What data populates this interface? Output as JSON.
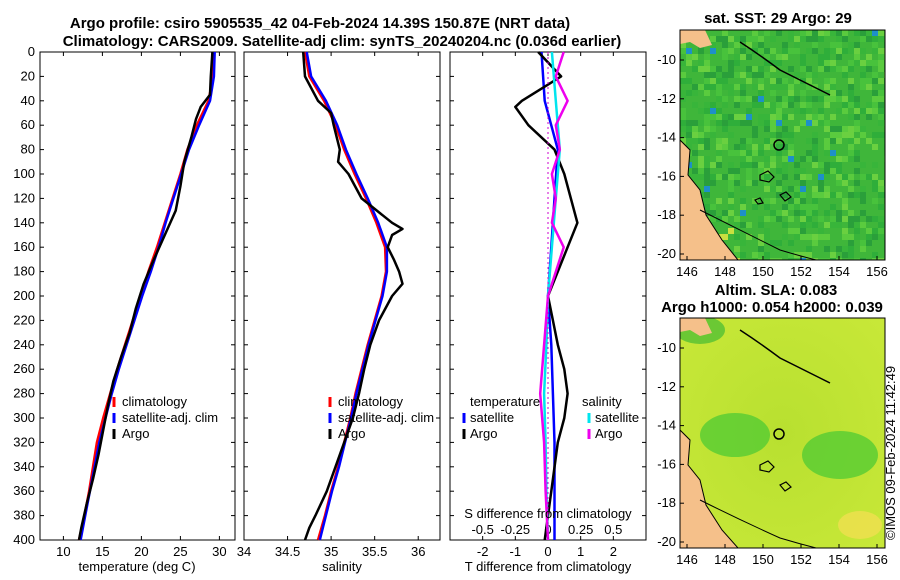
{
  "header": {
    "title_line1": "Argo profile: csiro 5905535_42 04-Feb-2024 14.39S 150.87E (NRT data)",
    "title_line2": "Climatology: CARS2009. Satellite-adj clim: synTS_20240204.nc (0.036d earlier)"
  },
  "colors": {
    "climatology": "#ff0000",
    "satellite": "#0000ff",
    "argo": "#000000",
    "satellite_diff": "#00e5ee",
    "argo_diff_s": "#ee00ee",
    "land": "#f5c08a",
    "sea": "#33bb33"
  },
  "chart_data": [
    {
      "type": "line",
      "name": "temperature-profile",
      "xlabel": "temperature (deg C)",
      "ylabel": "depth",
      "xlim": [
        7,
        32
      ],
      "ylim": [
        400,
        0
      ],
      "xticks": [
        10,
        15,
        20,
        25,
        30
      ],
      "yticks": [
        0,
        20,
        40,
        60,
        80,
        100,
        120,
        140,
        160,
        180,
        200,
        220,
        240,
        260,
        280,
        300,
        320,
        340,
        360,
        380,
        400
      ],
      "legend": [
        "climatology",
        "satellite-adj. clim",
        "Argo"
      ],
      "series": [
        {
          "name": "climatology",
          "color": "#ff0000",
          "depth": [
            0,
            20,
            40,
            60,
            80,
            100,
            120,
            140,
            160,
            180,
            200,
            220,
            240,
            260,
            280,
            300,
            320,
            340,
            360,
            380,
            400
          ],
          "values": [
            29.3,
            29.2,
            28.6,
            27.1,
            25.9,
            25.0,
            24.0,
            23.0,
            22.0,
            20.9,
            19.9,
            18.9,
            17.9,
            16.9,
            16.0,
            15.1,
            14.3,
            13.8,
            13.3,
            12.7,
            12.0
          ]
        },
        {
          "name": "satellite-adj. clim",
          "color": "#0000ff",
          "depth": [
            0,
            20,
            40,
            60,
            80,
            100,
            120,
            140,
            160,
            180,
            200,
            220,
            240,
            260,
            280,
            300,
            320,
            340,
            360,
            380,
            400
          ],
          "values": [
            29.4,
            29.3,
            28.8,
            27.4,
            26.1,
            25.1,
            24.1,
            23.1,
            22.2,
            21.2,
            20.1,
            19.1,
            18.1,
            17.1,
            16.2,
            15.4,
            14.6,
            14.0,
            13.4,
            12.8,
            12.2
          ]
        },
        {
          "name": "Argo",
          "color": "#000000",
          "depth": [
            0,
            20,
            35,
            45,
            55,
            70,
            90,
            110,
            130,
            150,
            170,
            190,
            210,
            230,
            250,
            270,
            290,
            310,
            330,
            350,
            370,
            390,
            400
          ],
          "values": [
            29.1,
            28.9,
            28.8,
            27.6,
            27.0,
            26.4,
            25.5,
            25.0,
            24.4,
            23.0,
            21.6,
            20.3,
            19.3,
            18.5,
            17.4,
            16.4,
            15.7,
            15.1,
            14.5,
            13.8,
            13.0,
            12.3,
            12.0
          ]
        }
      ]
    },
    {
      "type": "line",
      "name": "salinity-profile",
      "xlabel": "salinity",
      "ylabel": "depth",
      "xlim": [
        34,
        36.25
      ],
      "ylim": [
        400,
        0
      ],
      "xticks": [
        34,
        34.5,
        35,
        35.5,
        36
      ],
      "legend": [
        "climatology",
        "satellite-adj. clim",
        "Argo"
      ],
      "series": [
        {
          "name": "climatology",
          "color": "#ff0000",
          "depth": [
            0,
            20,
            40,
            60,
            80,
            100,
            120,
            140,
            160,
            180,
            200,
            220,
            240,
            260,
            280,
            300,
            320,
            340,
            360,
            380,
            400
          ],
          "values": [
            34.7,
            34.75,
            34.92,
            35.05,
            35.15,
            35.27,
            35.4,
            35.52,
            35.62,
            35.63,
            35.58,
            35.5,
            35.42,
            35.35,
            35.28,
            35.22,
            35.15,
            35.08,
            35.0,
            34.93,
            34.85
          ]
        },
        {
          "name": "satellite-adj. clim",
          "color": "#0000ff",
          "depth": [
            0,
            20,
            40,
            60,
            80,
            100,
            120,
            140,
            160,
            180,
            200,
            220,
            240,
            260,
            280,
            300,
            320,
            340,
            360,
            380,
            400
          ],
          "values": [
            34.72,
            34.77,
            34.94,
            35.07,
            35.17,
            35.29,
            35.42,
            35.54,
            35.64,
            35.64,
            35.59,
            35.51,
            35.43,
            35.36,
            35.29,
            35.23,
            35.16,
            35.09,
            35.01,
            34.94,
            34.87
          ]
        },
        {
          "name": "Argo",
          "color": "#000000",
          "depth": [
            0,
            20,
            40,
            50,
            60,
            80,
            90,
            100,
            120,
            140,
            145,
            150,
            160,
            170,
            180,
            190,
            200,
            220,
            240,
            260,
            280,
            300,
            320,
            340,
            360,
            380,
            390,
            400
          ],
          "values": [
            34.68,
            34.7,
            34.85,
            35.0,
            35.03,
            35.1,
            35.08,
            35.2,
            35.35,
            35.7,
            35.82,
            35.7,
            35.65,
            35.72,
            35.78,
            35.82,
            35.7,
            35.55,
            35.45,
            35.38,
            35.32,
            35.25,
            35.15,
            35.05,
            34.95,
            34.82,
            34.75,
            34.7
          ]
        }
      ]
    },
    {
      "type": "line",
      "name": "difference-from-climatology",
      "xlabel": "T difference from climatology",
      "xlabel_top": "S difference from climatology",
      "xlim": [
        -3,
        3
      ],
      "ylim": [
        400,
        0
      ],
      "xticks": [
        -2,
        -1,
        0,
        1,
        2
      ],
      "xticks_top": [
        "-0.5",
        "-0.25",
        "0",
        "0.25",
        "0.5"
      ],
      "legend_left_title": "temperature",
      "legend_right_title": "salinity",
      "legend": [
        "satellite",
        "Argo"
      ],
      "series": [
        {
          "name": "T satellite",
          "color": "#0000ff",
          "depth": [
            0,
            40,
            80,
            120,
            160,
            200,
            240,
            280,
            320,
            360,
            400
          ],
          "values": [
            -0.2,
            -0.1,
            0.3,
            0.2,
            0.1,
            0.0,
            0.1,
            0.15,
            0.2,
            0.2,
            0.2
          ]
        },
        {
          "name": "T Argo",
          "color": "#000000",
          "depth": [
            0,
            20,
            40,
            45,
            60,
            80,
            100,
            140,
            160,
            200,
            240,
            260,
            280,
            300,
            320,
            360,
            400
          ],
          "values": [
            -0.3,
            0.4,
            -0.8,
            -1.0,
            -0.6,
            0.2,
            0.5,
            0.9,
            0.6,
            0.0,
            0.3,
            0.5,
            0.6,
            0.5,
            0.3,
            0.1,
            -0.1
          ]
        },
        {
          "name": "S satellite",
          "color": "#00e5ee",
          "depth": [
            0,
            40,
            80,
            120,
            160,
            200,
            240,
            280,
            320,
            360,
            400
          ],
          "values": [
            0.05,
            0.1,
            0.15,
            0.1,
            0.05,
            0.0,
            -0.02,
            -0.05,
            -0.03,
            -0.02,
            0.0
          ]
        },
        {
          "name": "S Argo",
          "color": "#ee00ee",
          "depth": [
            0,
            20,
            40,
            60,
            80,
            100,
            120,
            140,
            160,
            170,
            200,
            240,
            280,
            320,
            360,
            400
          ],
          "values": [
            0.2,
            0.1,
            0.25,
            0.1,
            0.15,
            0.05,
            0.1,
            0.05,
            0.2,
            0.15,
            0.0,
            -0.05,
            -0.1,
            -0.05,
            -0.03,
            0.0
          ]
        }
      ]
    }
  ],
  "maps": [
    {
      "name": "sst-map",
      "title": "sat. SST: 29 Argo: 29",
      "xticks": [
        "146",
        "148",
        "150",
        "152",
        "154",
        "156"
      ],
      "yticks": [
        "-10",
        "-12",
        "-14",
        "-16",
        "-18",
        "-20"
      ]
    },
    {
      "name": "sla-map",
      "title_line1": "Altim. SLA: 0.083",
      "title_line2": "Argo h1000: 0.054 h2000: 0.039",
      "xticks": [
        "146",
        "148",
        "150",
        "152",
        "154",
        "156"
      ],
      "yticks": [
        "-10",
        "-12",
        "-14",
        "-16",
        "-18",
        "-20"
      ]
    }
  ],
  "credit": "©IMOS 09-Feb-2024 11:42:49"
}
